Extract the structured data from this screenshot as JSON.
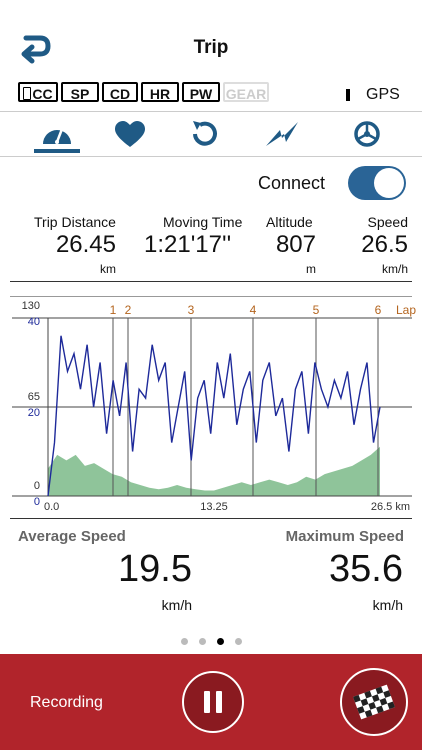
{
  "header": {
    "title": "Trip"
  },
  "sensors": [
    {
      "label": "CC",
      "active": true,
      "icon": "phone-icon"
    },
    {
      "label": "SP",
      "active": true
    },
    {
      "label": "CD",
      "active": true
    },
    {
      "label": "HR",
      "active": true
    },
    {
      "label": "PW",
      "active": true
    },
    {
      "label": "GEAR",
      "active": false
    }
  ],
  "gps": {
    "label": "GPS"
  },
  "tabs": [
    {
      "name": "speedometer-icon",
      "selected": true
    },
    {
      "name": "heart-icon",
      "selected": false
    },
    {
      "name": "refresh-icon",
      "selected": false
    },
    {
      "name": "lightning-icon",
      "selected": false
    },
    {
      "name": "gear-icon",
      "selected": false
    }
  ],
  "connect": {
    "label": "Connect",
    "on": true
  },
  "stats": {
    "trip_distance": {
      "label": "Trip Distance",
      "value": "26.45",
      "unit": "km"
    },
    "moving_time": {
      "label": "Moving Time",
      "value": "1:21'17''"
    },
    "altitude": {
      "label": "Altitude",
      "value": "807",
      "unit": "m"
    },
    "speed": {
      "label": "Speed",
      "value": "26.5",
      "unit": "km/h"
    }
  },
  "chart_data": {
    "type": "line",
    "x_ticks": [
      "0.0",
      "13.25",
      "26.5 km"
    ],
    "x_range": [
      0,
      26.5
    ],
    "y_left_ticks_speed": [
      "40",
      "20",
      "0"
    ],
    "y_left_ticks_altitude": [
      "130",
      "65",
      "0"
    ],
    "lap_markers": [
      "1",
      "2",
      "3",
      "4",
      "5",
      "6"
    ],
    "lap_label": "Lap",
    "colors": {
      "speed": "#1e2a9a",
      "altitude": "#8fc49a",
      "lap": "#b4651f"
    },
    "series": [
      {
        "values_speed": [
          0,
          12,
          36,
          28,
          32,
          24,
          34,
          20,
          30,
          14,
          26,
          18,
          30,
          10,
          24,
          22,
          34,
          26,
          30,
          12,
          20,
          28,
          8,
          22,
          26,
          14,
          30,
          22,
          32,
          16,
          24,
          28,
          12,
          26,
          30,
          18,
          22,
          10,
          24,
          28,
          14,
          30,
          24,
          20,
          26,
          22,
          28,
          16,
          24,
          30,
          12,
          20
        ]
      },
      {
        "values_altitude": [
          20,
          30,
          26,
          30,
          22,
          24,
          20,
          16,
          14,
          10,
          8,
          6,
          5,
          6,
          8,
          6,
          5,
          4,
          4,
          6,
          8,
          10,
          8,
          10,
          12,
          10,
          8,
          10,
          14,
          12,
          16,
          18,
          20,
          22,
          26,
          30,
          36
        ]
      }
    ]
  },
  "bottom": {
    "avg_label": "Average Speed",
    "avg_value": "19.5",
    "avg_unit": "km/h",
    "max_label": "Maximum Speed",
    "max_value": "35.6",
    "max_unit": "km/h"
  },
  "page_dots": {
    "count": 4,
    "active_index": 2
  },
  "footer": {
    "recording_label": "Recording",
    "background": "#b1242b"
  }
}
